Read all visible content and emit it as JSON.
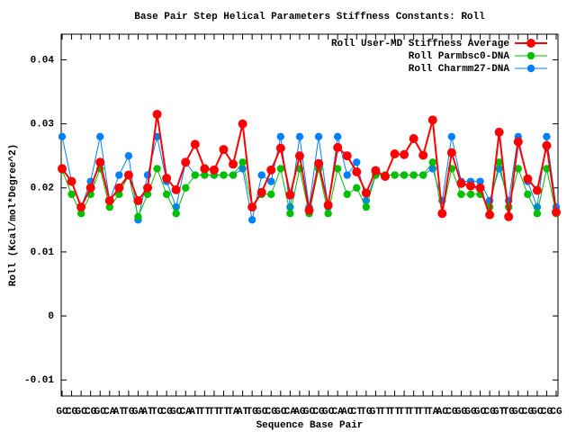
{
  "chart_data": {
    "type": "line",
    "title": "Base Pair Step Helical Parameters Stiffness Constants: Roll",
    "x_label": "Sequence Base Pair",
    "y_label": "Roll (Kcal/mol*Degree^2)",
    "categories": [
      "GC",
      "CG",
      "GC",
      "CG",
      "GC",
      "CA",
      "AT",
      "TG",
      "GA",
      "AT",
      "TC",
      "CG",
      "GC",
      "CA",
      "AT",
      "TT",
      "TT",
      "TT",
      "TA",
      "AT",
      "TG",
      "GC",
      "CG",
      "GC",
      "CA",
      "AG",
      "GC",
      "CG",
      "GC",
      "CA",
      "AC",
      "CT",
      "TG",
      "GT",
      "TT",
      "TT",
      "TT",
      "TT",
      "TT",
      "TA",
      "AC",
      "CG",
      "GG",
      "GG",
      "GC",
      "CG",
      "GT",
      "TG",
      "GC",
      "CG",
      "GC",
      "CG",
      "CG"
    ],
    "series": [
      {
        "name": "Roll User-MD Stiffness Average",
        "color": "#ff0000",
        "values": [
          0.023,
          0.021,
          0.017,
          0.02,
          0.024,
          0.018,
          0.02,
          0.022,
          0.018,
          0.02,
          0.0315,
          0.0215,
          0.0197,
          0.024,
          0.0268,
          0.023,
          0.0228,
          0.026,
          0.0237,
          0.03,
          0.017,
          0.0193,
          0.0228,
          0.0262,
          0.0189,
          0.025,
          0.0165,
          0.0238,
          0.0173,
          0.0263,
          0.025,
          0.0225,
          0.0192,
          0.0227,
          0.0218,
          0.0253,
          0.0252,
          0.0277,
          0.0251,
          0.0306,
          0.016,
          0.0255,
          0.0207,
          0.0203,
          0.02,
          0.0158,
          0.0287,
          0.0155,
          0.0272,
          0.0214,
          0.0196,
          0.0266,
          0.0162
        ]
      },
      {
        "name": "Roll Parmbsc0-DNA",
        "color": "#00c000",
        "values": [
          0.0228,
          0.019,
          0.016,
          0.019,
          0.023,
          0.017,
          0.019,
          0.022,
          0.0155,
          0.019,
          0.023,
          0.019,
          0.016,
          0.02,
          0.022,
          0.022,
          0.022,
          0.022,
          0.022,
          0.024,
          0.017,
          0.019,
          0.019,
          0.023,
          0.016,
          0.023,
          0.016,
          0.023,
          0.016,
          0.023,
          0.019,
          0.02,
          0.017,
          0.022,
          0.022,
          0.022,
          0.022,
          0.022,
          0.022,
          0.024,
          0.016,
          0.023,
          0.019,
          0.019,
          0.019,
          0.017,
          0.024,
          0.017,
          0.023,
          0.019,
          0.016,
          0.023,
          0.016
        ]
      },
      {
        "name": "Roll Charmm27-DNA",
        "color": "#0080ff",
        "values": [
          0.028,
          0.021,
          0.017,
          0.021,
          0.028,
          0.018,
          0.022,
          0.025,
          0.015,
          0.022,
          0.028,
          0.021,
          0.017,
          0.024,
          0.022,
          0.022,
          0.022,
          0.022,
          0.022,
          0.023,
          0.015,
          0.022,
          0.021,
          0.028,
          0.017,
          0.028,
          0.017,
          0.028,
          0.017,
          0.028,
          0.022,
          0.024,
          0.018,
          0.022,
          0.022,
          0.022,
          0.022,
          0.022,
          0.022,
          0.023,
          0.018,
          0.028,
          0.021,
          0.021,
          0.021,
          0.018,
          0.023,
          0.018,
          0.028,
          0.021,
          0.017,
          0.028,
          0.017
        ]
      }
    ],
    "ylim": [
      -0.0125,
      0.044
    ],
    "yticks": [
      -0.01,
      0,
      0.01,
      0.02,
      0.03,
      0.04
    ],
    "legend": "top-right"
  }
}
